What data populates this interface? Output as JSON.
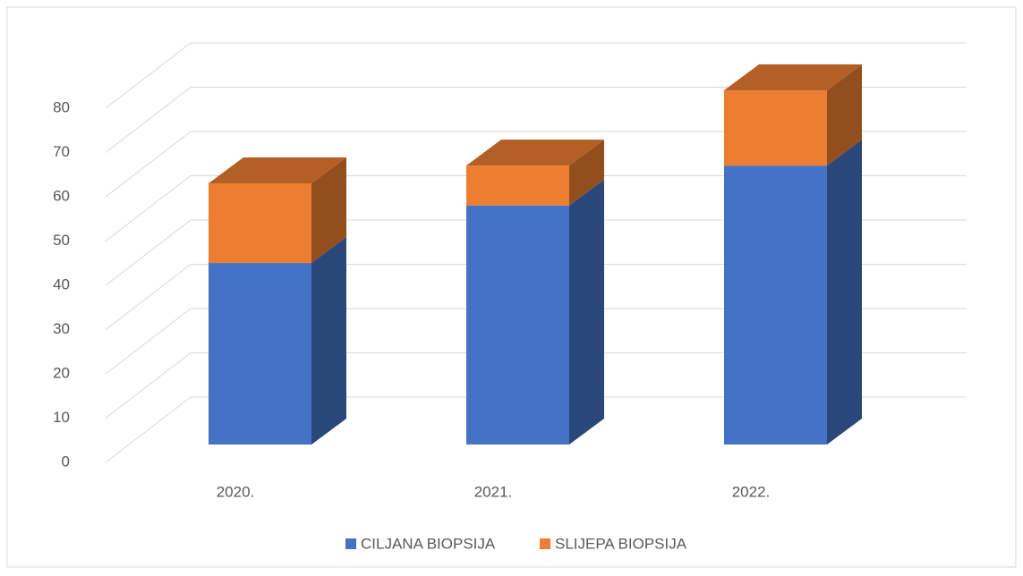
{
  "chart_data": {
    "type": "bar3d_stacked",
    "categories": [
      "2020.",
      "2021.",
      "2022."
    ],
    "series": [
      {
        "name": "CILJANA BIOPSIJA",
        "color": "#4472c4",
        "values": [
          41,
          54,
          63
        ]
      },
      {
        "name": "SLIJEPA BIOPSIJA",
        "color": "#ed7d31",
        "values": [
          18,
          9,
          17
        ]
      }
    ],
    "ylim": [
      0,
      80
    ],
    "yticks": [
      0,
      10,
      20,
      30,
      40,
      50,
      60,
      70,
      80
    ],
    "grid": true
  }
}
